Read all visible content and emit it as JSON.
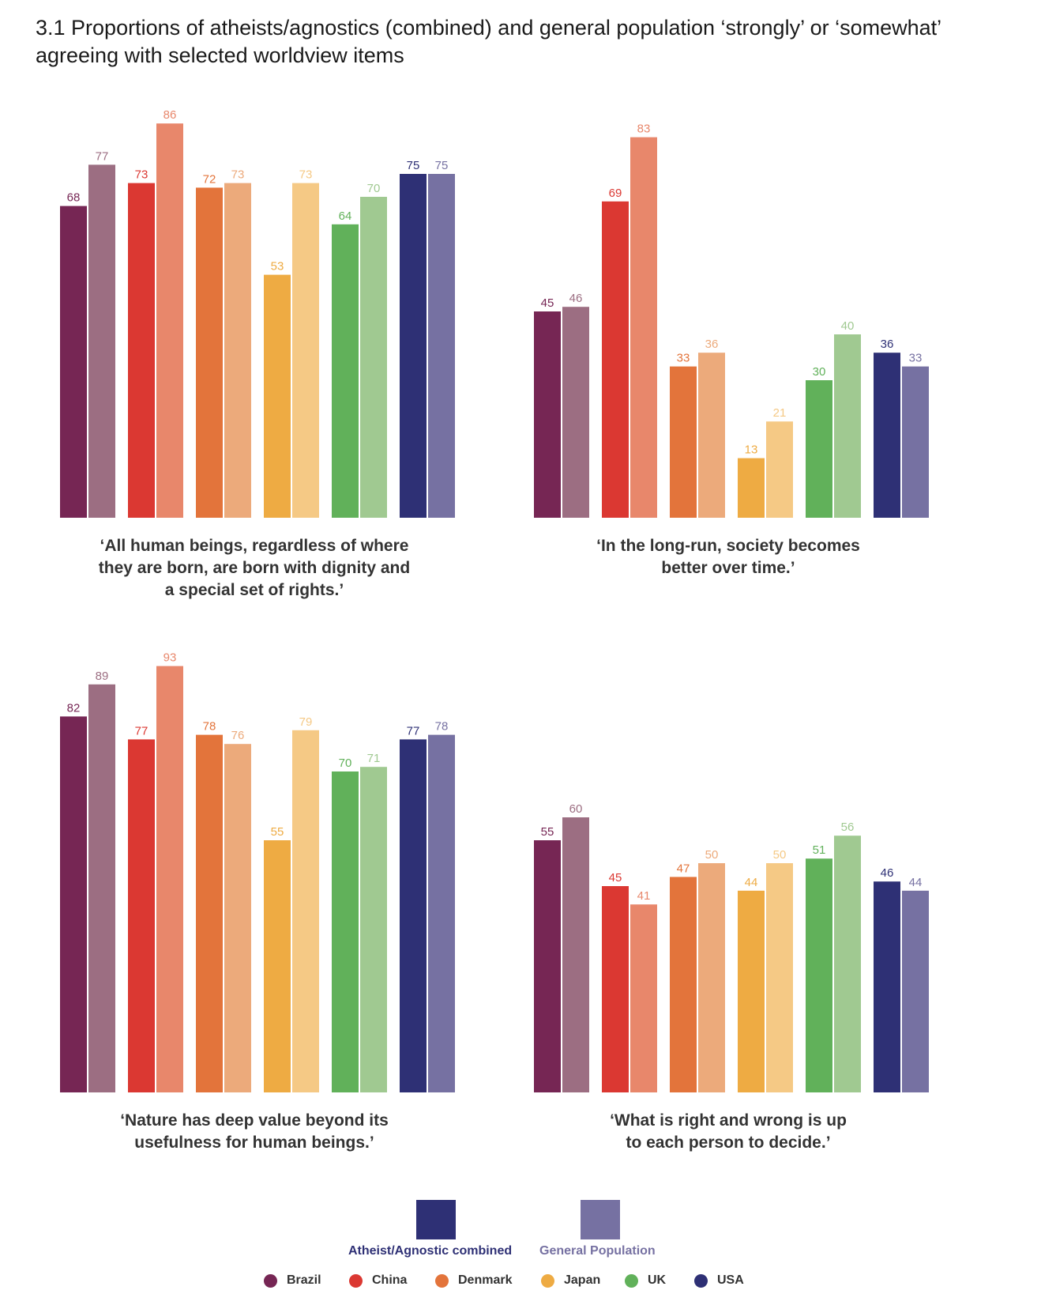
{
  "title": "3.1 Proportions of atheists/agnostics (combined) and general population ‘strongly’ or ‘somewhat’ agreeing with selected worldview items",
  "colors": {
    "Brazil": [
      "#762654",
      "#9c6e82"
    ],
    "China": [
      "#db3832",
      "#e8876b"
    ],
    "Denmark": [
      "#e3743b",
      "#ecaa7b"
    ],
    "Japan": [
      "#eeab43",
      "#f5c985"
    ],
    "UK": [
      "#61b15a",
      "#a0c991"
    ],
    "USA": [
      "#2e3075",
      "#7671a2"
    ]
  },
  "legend": {
    "atheist_label": "Atheist/Agnostic combined",
    "general_label": "General Population",
    "atheist_color": "#2e3075",
    "general_color": "#7671a2",
    "countries": [
      "Brazil",
      "China",
      "Denmark",
      "Japan",
      "UK",
      "USA"
    ]
  },
  "chart_data": [
    {
      "type": "bar",
      "caption": "‘All human beings, regardless of where they are born, are born with dignity and a special set of rights.’",
      "categories": [
        "Brazil",
        "China",
        "Denmark",
        "Japan",
        "UK",
        "USA"
      ],
      "series": [
        {
          "name": "Atheist/Agnostic combined",
          "values": [
            68,
            73,
            72,
            53,
            64,
            75
          ]
        },
        {
          "name": "General Population",
          "values": [
            77,
            86,
            73,
            73,
            70,
            75
          ]
        }
      ],
      "ylim": [
        0,
        100
      ]
    },
    {
      "type": "bar",
      "caption": "‘In the long-run, society becomes better over time.’",
      "categories": [
        "Brazil",
        "China",
        "Denmark",
        "Japan",
        "UK",
        "USA"
      ],
      "series": [
        {
          "name": "Atheist/Agnostic combined",
          "values": [
            45,
            69,
            33,
            13,
            30,
            36
          ]
        },
        {
          "name": "General Population",
          "values": [
            46,
            83,
            36,
            21,
            40,
            33
          ]
        }
      ],
      "ylim": [
        0,
        100
      ]
    },
    {
      "type": "bar",
      "caption": "‘Nature has deep value beyond its usefulness for human beings.’",
      "categories": [
        "Brazil",
        "China",
        "Denmark",
        "Japan",
        "UK",
        "USA"
      ],
      "series": [
        {
          "name": "Atheist/Agnostic combined",
          "values": [
            82,
            77,
            78,
            55,
            70,
            77
          ]
        },
        {
          "name": "General Population",
          "values": [
            89,
            93,
            76,
            79,
            71,
            78
          ]
        }
      ],
      "ylim": [
        0,
        100
      ]
    },
    {
      "type": "bar",
      "caption": "‘What is right and wrong is up to each person to decide.’",
      "categories": [
        "Brazil",
        "China",
        "Denmark",
        "Japan",
        "UK",
        "USA"
      ],
      "series": [
        {
          "name": "Atheist/Agnostic combined",
          "values": [
            55,
            45,
            47,
            44,
            51,
            46
          ]
        },
        {
          "name": "General Population",
          "values": [
            60,
            41,
            50,
            50,
            56,
            44
          ]
        }
      ],
      "ylim": [
        0,
        100
      ]
    }
  ]
}
